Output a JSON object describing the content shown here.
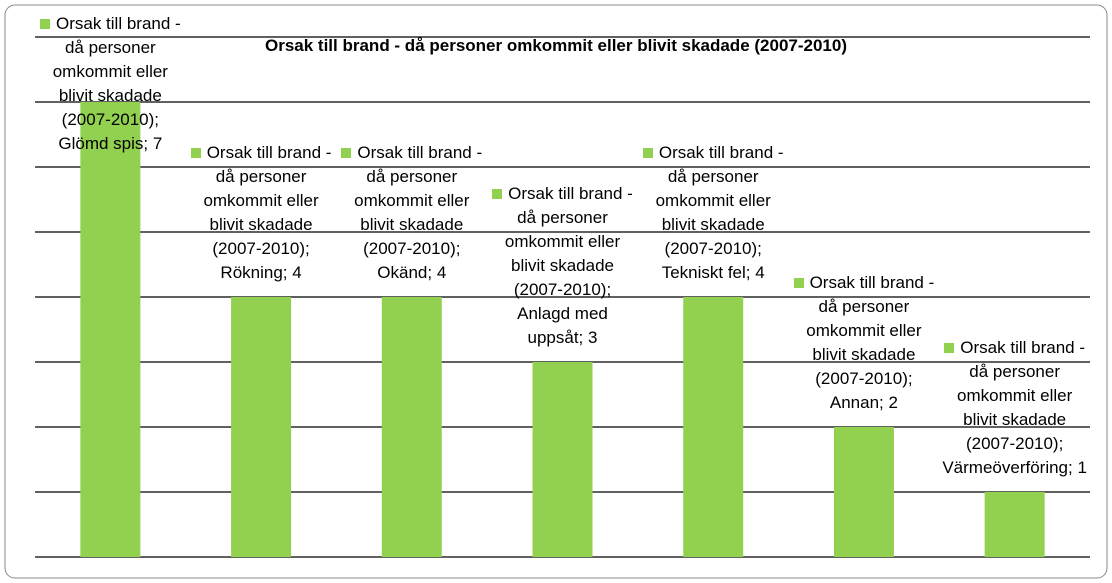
{
  "chart_data": {
    "type": "bar",
    "title": "Orsak till brand - då personer omkommit eller blivit skadade (2007-2010)",
    "categories": [
      "Glömd spis",
      "Rökning",
      "Okänd",
      "Anlagd med uppsåt",
      "Tekniskt fel",
      "Annan",
      "Värmeöverföring"
    ],
    "series": [
      {
        "name": "Orsak till brand - då personer omkommit eller blivit skadade (2007-2010)",
        "color": "#92d050",
        "values": [
          7,
          4,
          4,
          3,
          4,
          2,
          1
        ],
        "value_labels": [
          "Orsak till brand - då personer omkommit eller blivit skadade (2007-2010); Glömd spis; 7",
          "Orsak till brand - då personer omkommit eller blivit skadade (2007-2010); Rökning; 4",
          "Orsak till brand - då personer omkommit eller blivit skadade (2007-2010); Okänd; 4",
          "Orsak till brand - då personer omkommit eller blivit skadade (2007-2010); Anlagd med uppsåt; 3",
          "Orsak till brand - då personer omkommit eller blivit skadade (2007-2010); Tekniskt fel; 4",
          "Orsak till brand - då personer omkommit eller blivit skadade (2007-2010); Annan; 2",
          "Orsak till brand - då personer omkommit eller blivit skadade (2007-2010); Värmeöverföring; 1"
        ]
      }
    ],
    "ylim": [
      0,
      8
    ],
    "yticks": [
      0,
      1,
      2,
      3,
      4,
      5,
      6,
      7,
      8
    ],
    "grid": true
  }
}
